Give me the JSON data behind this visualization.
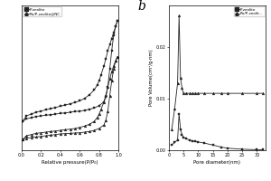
{
  "panel_a": {
    "xlabel": "Relative pressure(P/P₀)",
    "xlim": [
      0.0,
      1.0
    ],
    "p_zeolite_ads_x": [
      0.01,
      0.05,
      0.1,
      0.15,
      0.2,
      0.25,
      0.3,
      0.35,
      0.4,
      0.45,
      0.5,
      0.55,
      0.6,
      0.65,
      0.7,
      0.75,
      0.8,
      0.85,
      0.87,
      0.89,
      0.91,
      0.93,
      0.95,
      0.97,
      0.99
    ],
    "p_zeolite_ads_y": [
      48,
      52,
      54,
      56,
      57,
      58,
      59,
      60,
      61,
      62,
      63,
      64,
      65,
      66,
      68,
      70,
      74,
      80,
      88,
      105,
      135,
      165,
      190,
      205,
      215
    ],
    "p_zeolite_des_x": [
      0.99,
      0.97,
      0.95,
      0.93,
      0.91,
      0.89,
      0.87,
      0.85,
      0.82,
      0.8,
      0.78,
      0.75,
      0.7,
      0.65,
      0.6,
      0.55,
      0.5,
      0.45,
      0.4,
      0.35,
      0.3,
      0.25,
      0.2,
      0.15,
      0.1,
      0.05,
      0.01
    ],
    "p_zeolite_des_y": [
      215,
      205,
      195,
      185,
      175,
      165,
      152,
      140,
      125,
      115,
      108,
      100,
      92,
      86,
      82,
      79,
      77,
      75,
      73,
      71,
      69,
      67,
      65,
      63,
      60,
      57,
      48
    ],
    "ru_ads_x": [
      0.01,
      0.05,
      0.1,
      0.15,
      0.2,
      0.25,
      0.3,
      0.35,
      0.4,
      0.45,
      0.5,
      0.55,
      0.6,
      0.65,
      0.7,
      0.75,
      0.8,
      0.85,
      0.87,
      0.89,
      0.91,
      0.93,
      0.95,
      0.97,
      0.99
    ],
    "ru_ads_y": [
      18,
      20,
      21,
      22,
      23,
      24,
      25,
      26,
      27,
      27.5,
      28,
      28.5,
      29,
      30,
      31,
      33,
      36,
      42,
      50,
      65,
      90,
      115,
      135,
      148,
      155
    ],
    "ru_des_x": [
      0.99,
      0.97,
      0.95,
      0.93,
      0.91,
      0.89,
      0.87,
      0.85,
      0.82,
      0.8,
      0.78,
      0.75,
      0.7,
      0.65,
      0.6,
      0.55,
      0.5,
      0.45,
      0.4,
      0.35,
      0.3,
      0.25,
      0.2,
      0.15,
      0.1,
      0.05,
      0.01
    ],
    "ru_des_y": [
      155,
      148,
      140,
      130,
      118,
      105,
      92,
      80,
      68,
      60,
      54,
      48,
      43,
      40,
      38,
      36,
      35,
      34,
      33,
      32,
      31,
      30,
      29,
      28,
      26,
      24,
      18
    ],
    "legend": [
      "P-zeolite",
      "Ru/P-zeolite@NC"
    ],
    "marker_p": "s",
    "marker_ru": "^",
    "color": "#222222"
  },
  "panel_b": {
    "title": "b",
    "xlabel": "Pore diameter(nm)",
    "ylabel": "Pore Volume(cm³/g·nm)",
    "xlim": [
      0,
      33
    ],
    "ylim": [
      0,
      0.028
    ],
    "p_x": [
      1.0,
      2.0,
      3.0,
      3.5,
      4.0,
      4.5,
      5.0,
      6.0,
      7.0,
      8.0,
      9.0,
      10.0,
      12.0,
      15.0,
      18.0,
      20.0,
      25.0,
      30.0,
      32.0
    ],
    "p_y": [
      0.001,
      0.0015,
      0.002,
      0.007,
      0.004,
      0.003,
      0.0025,
      0.0022,
      0.002,
      0.0018,
      0.0017,
      0.0016,
      0.0014,
      0.001,
      0.0006,
      0.0004,
      0.0002,
      0.0001,
      0.0001
    ],
    "ru_x": [
      1.0,
      2.0,
      3.0,
      3.5,
      4.0,
      4.5,
      5.0,
      6.0,
      7.0,
      8.0,
      9.0,
      10.0,
      12.0,
      15.0,
      18.0,
      20.0,
      25.0,
      30.0,
      32.0
    ],
    "ru_y": [
      0.004,
      0.008,
      0.013,
      0.026,
      0.014,
      0.012,
      0.011,
      0.011,
      0.011,
      0.011,
      0.011,
      0.011,
      0.011,
      0.011,
      0.011,
      0.011,
      0.011,
      0.011,
      0.011
    ],
    "legend": [
      "P-zeolite",
      "Ru/P-zeolit..."
    ],
    "marker_p": "s",
    "marker_ru": "^",
    "color": "#222222"
  },
  "background": "#ffffff"
}
